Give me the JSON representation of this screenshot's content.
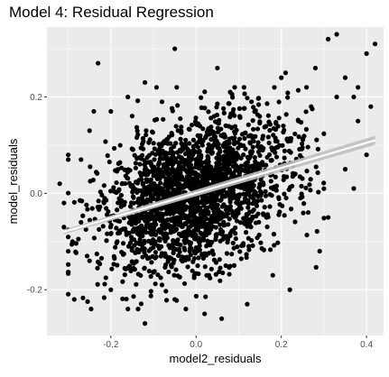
{
  "chart_data": {
    "type": "scatter",
    "title": "Model 4: Residual Regression",
    "xlabel": "model2_residuals",
    "ylabel": "model_residuals",
    "xlim": [
      -0.35,
      0.44
    ],
    "ylim": [
      -0.295,
      0.345
    ],
    "x_ticks": [
      -0.2,
      0.0,
      0.2,
      0.4
    ],
    "x_tick_labels": [
      "-0.2",
      "0.0",
      "0.2",
      "0.4"
    ],
    "y_ticks": [
      -0.2,
      0.0,
      0.2
    ],
    "y_tick_labels": [
      "-0.2",
      "0.0",
      "0.2"
    ],
    "grid": true,
    "background": "#EBEBEB",
    "grid_color": "#FFFFFF",
    "point_color": "#000000",
    "fit_line": {
      "type": "linear",
      "x": [
        -0.31,
        0.42
      ],
      "y": [
        -0.08,
        0.11
      ],
      "color": "#FFFFFF",
      "ci_color": "#BFBFBF"
    },
    "series": [
      {
        "points": [
          [
            -0.23,
            0.27
          ],
          [
            0.33,
            0.33
          ],
          [
            0.31,
            0.32
          ],
          [
            0.42,
            0.31
          ],
          [
            0.4,
            0.29
          ],
          [
            -0.05,
            0.3
          ],
          [
            0.38,
            0.22
          ],
          [
            0.37,
            0.2
          ],
          [
            0.35,
            0.24
          ],
          [
            0.33,
            0.2
          ],
          [
            0.41,
            0.18
          ],
          [
            0.38,
            0.15
          ],
          [
            -0.2,
            0.17
          ],
          [
            -0.24,
            0.17
          ],
          [
            -0.16,
            0.2
          ],
          [
            -0.12,
            0.23
          ],
          [
            0.05,
            0.26
          ],
          [
            0.2,
            0.24
          ],
          [
            0.21,
            0.25
          ],
          [
            0.28,
            0.26
          ],
          [
            -0.3,
            0.07
          ],
          [
            -0.32,
            0.02
          ],
          [
            -0.31,
            -0.02
          ],
          [
            -0.27,
            -0.06
          ],
          [
            -0.29,
            -0.1
          ],
          [
            -0.31,
            -0.07
          ],
          [
            -0.25,
            0.13
          ],
          [
            -0.27,
            0.07
          ],
          [
            -0.12,
            -0.27
          ],
          [
            0.02,
            -0.25
          ],
          [
            0.06,
            -0.26
          ],
          [
            -0.2,
            -0.2
          ],
          [
            -0.25,
            -0.14
          ],
          [
            -0.16,
            -0.24
          ],
          [
            0.12,
            -0.23
          ],
          [
            0.22,
            -0.2
          ],
          [
            0.18,
            -0.17
          ],
          [
            0.29,
            -0.12
          ],
          [
            0.31,
            -0.05
          ],
          [
            0.37,
            0.01
          ],
          [
            0.35,
            0.05
          ],
          [
            0.4,
            0.08
          ],
          [
            0.03,
            -0.17
          ],
          [
            -0.08,
            -0.19
          ],
          [
            -0.05,
            -0.22
          ],
          [
            0.08,
            0.21
          ],
          [
            -0.08,
            0.19
          ],
          [
            0.13,
            0.19
          ],
          [
            0.27,
            0.18
          ],
          [
            0.24,
            0.15
          ]
        ],
        "cloud": {
          "n": 2200,
          "seed": 7,
          "x_mean": 0.0,
          "x_sd": 0.11,
          "slope": 0.26,
          "intercept": 0.0,
          "noise_sd": 0.075
        }
      }
    ]
  }
}
